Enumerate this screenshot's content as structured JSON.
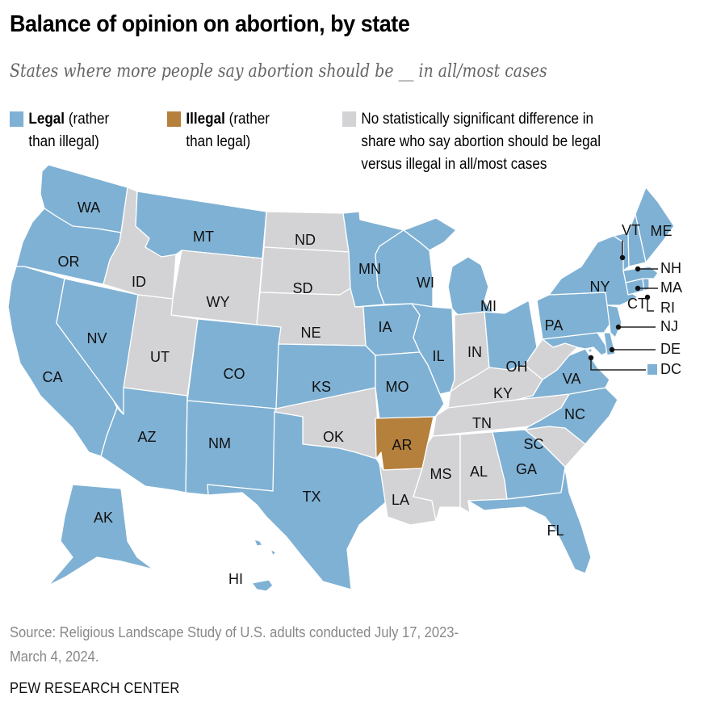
{
  "header": {
    "title": "Balance of opinion on abortion, by state",
    "subtitle": "States where more people say abortion should be __ in all/most cases"
  },
  "legend": {
    "items": [
      {
        "key": "legal",
        "bold": "Legal",
        "rest_line1": " (rather",
        "line2": "than illegal)",
        "color": "#7fb1d4"
      },
      {
        "key": "illegal",
        "bold": "Illegal",
        "rest_line1": " (rather",
        "line2": "than legal)",
        "color": "#b5803c"
      },
      {
        "key": "nosig",
        "line1": "No statistically significant difference in",
        "line2": "share who say abortion should be legal",
        "line3": "versus illegal in all/most cases",
        "color": "#d3d3d5"
      }
    ]
  },
  "colors": {
    "legal": "#7fb1d4",
    "illegal": "#b5803c",
    "nosig": "#d3d3d5",
    "border": "#ffffff"
  },
  "chart_data": {
    "type": "choropleth",
    "title": "Balance of opinion on abortion, by state",
    "subtitle": "States where more people say abortion should be __ in all/most cases",
    "categories": [
      "legal",
      "illegal",
      "nosig"
    ],
    "states": {
      "WA": "legal",
      "OR": "legal",
      "CA": "legal",
      "NV": "legal",
      "ID": "nosig",
      "MT": "legal",
      "WY": "nosig",
      "UT": "nosig",
      "CO": "legal",
      "AZ": "legal",
      "NM": "legal",
      "ND": "nosig",
      "SD": "nosig",
      "NE": "nosig",
      "KS": "legal",
      "OK": "nosig",
      "TX": "legal",
      "MN": "legal",
      "IA": "legal",
      "MO": "legal",
      "AR": "illegal",
      "LA": "nosig",
      "WI": "legal",
      "IL": "legal",
      "MI": "legal",
      "IN": "nosig",
      "OH": "legal",
      "KY": "nosig",
      "TN": "nosig",
      "MS": "nosig",
      "AL": "nosig",
      "GA": "legal",
      "FL": "legal",
      "SC": "nosig",
      "NC": "legal",
      "VA": "legal",
      "WV": "nosig",
      "PA": "legal",
      "NY": "legal",
      "VT": "legal",
      "NH": "legal",
      "ME": "legal",
      "MA": "legal",
      "RI": "legal",
      "CT": "legal",
      "NJ": "legal",
      "DE": "legal",
      "MD": "legal",
      "DC": "legal",
      "AK": "legal",
      "HI": "legal"
    },
    "callouts": [
      "VT",
      "NH",
      "MA",
      "RI",
      "NJ",
      "DE",
      "DC"
    ]
  },
  "footer": {
    "source_line1": "Source: Religious Landscape Study of U.S. adults conducted July 17, 2023-",
    "source_line2": "March 4, 2024.",
    "brand": "PEW RESEARCH CENTER"
  }
}
